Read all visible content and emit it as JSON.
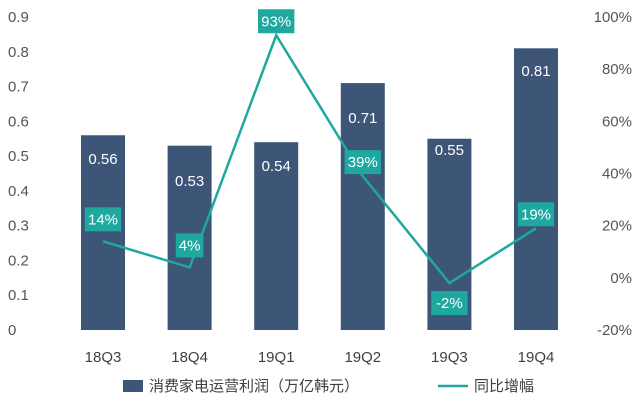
{
  "chart_data": {
    "type": "bar+line",
    "categories": [
      "18Q3",
      "18Q4",
      "19Q1",
      "19Q2",
      "19Q3",
      "19Q4"
    ],
    "series": [
      {
        "name": "消费家电运营利润（万亿韩元）",
        "type": "bar",
        "axis": "left",
        "values": [
          0.56,
          0.53,
          0.54,
          0.71,
          0.55,
          0.81
        ],
        "labels": [
          "0.56",
          "0.53",
          "0.54",
          "0.71",
          "0.55",
          "0.81"
        ],
        "color": "#3d5677"
      },
      {
        "name": "同比增幅",
        "type": "line",
        "axis": "right",
        "values": [
          14,
          4,
          93,
          39,
          -2,
          19
        ],
        "labels": [
          "14%",
          "4%",
          "93%",
          "39%",
          "-2%",
          "19%"
        ],
        "color": "#1fa89f"
      }
    ],
    "left_axis": {
      "min": 0,
      "max": 0.9,
      "step": 0.1,
      "ticks": [
        "0",
        "0.1",
        "0.2",
        "0.3",
        "0.4",
        "0.5",
        "0.6",
        "0.7",
        "0.8",
        "0.9"
      ]
    },
    "right_axis": {
      "min": -20,
      "max": 100,
      "step": 20,
      "ticks": [
        "-20%",
        "0%",
        "20%",
        "40%",
        "60%",
        "80%",
        "100%"
      ]
    },
    "legend_position": "bottom",
    "grid": false
  }
}
